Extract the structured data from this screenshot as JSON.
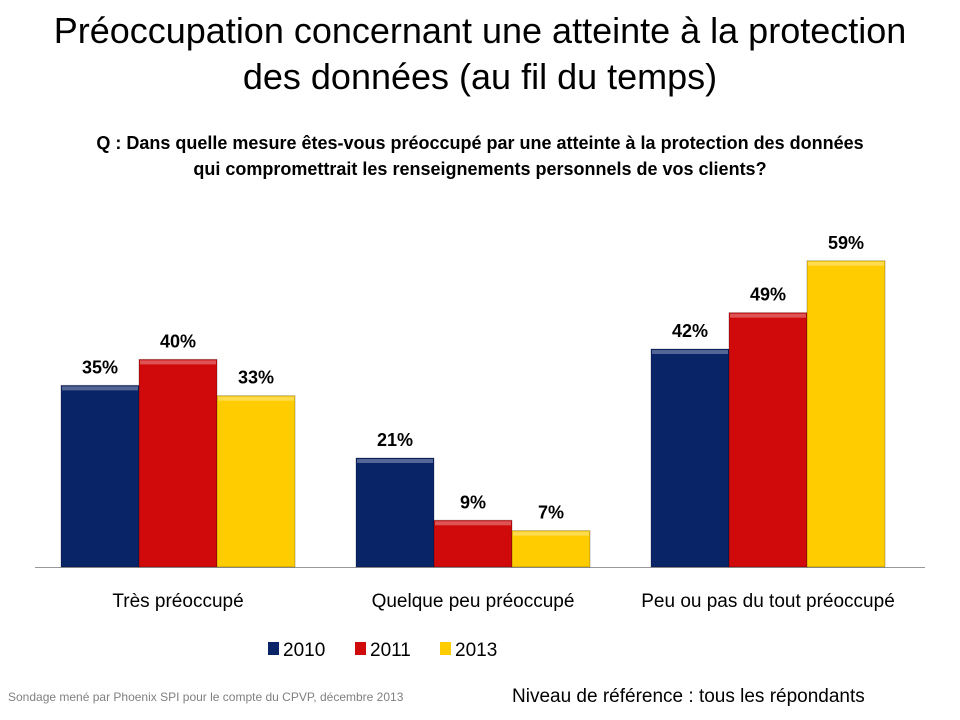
{
  "title_line1": "Préoccupation concernant une atteinte à la protection",
  "title_line2": "des données (au fil du temps)",
  "question_line1": "Q : Dans quelle mesure êtes-vous préoccupé par une atteinte à la protection des données",
  "question_line2": "qui compromettrait les renseignements personnels de vos clients?",
  "source": "Sondage mené par Phoenix SPI pour  le compte du CPVP, décembre  2013",
  "reference": "Niveau de référence : tous les répondants",
  "chart_data": {
    "type": "bar",
    "categories": [
      "Très préoccupé",
      "Quelque peu préoccupé",
      "Peu ou pas du tout préoccupé"
    ],
    "series": [
      {
        "name": "2010",
        "values": [
          35,
          21,
          42
        ],
        "color": "#0a2468"
      },
      {
        "name": "2011",
        "values": [
          40,
          9,
          49
        ],
        "color": "#d00a0a"
      },
      {
        "name": "2013",
        "values": [
          33,
          7,
          59
        ],
        "color": "#ffcc00"
      }
    ],
    "unit": "%",
    "ylim": [
      0,
      60
    ],
    "grid": false,
    "legend": "bottom"
  }
}
